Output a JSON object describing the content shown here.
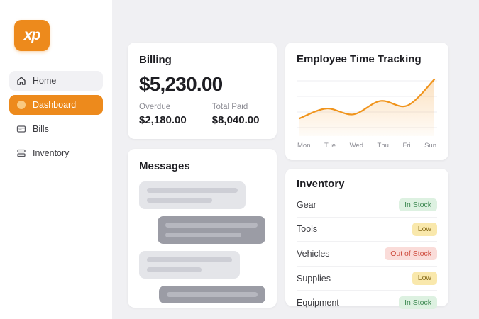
{
  "sidebar": {
    "logo_text": "xp",
    "items": [
      {
        "label": "Home",
        "icon": "home-icon",
        "state": "hovered"
      },
      {
        "label": "Dashboard",
        "icon": "dot-icon",
        "state": "active"
      },
      {
        "label": "Bills",
        "icon": "bills-icon",
        "state": "default"
      },
      {
        "label": "Inventory",
        "icon": "inventory-icon",
        "state": "default"
      }
    ]
  },
  "billing": {
    "title": "Billing",
    "total": "$5,230.00",
    "overdue_label": "Overdue",
    "overdue_value": "$2,180.00",
    "paid_label": "Total Paid",
    "paid_value": "$8,040.00"
  },
  "time_tracking": {
    "title": "Employee Time Tracking"
  },
  "chart_data": {
    "type": "line",
    "title": "Employee Time Tracking",
    "x": [
      "Mon",
      "Tue",
      "Wed",
      "Thu",
      "Fri",
      "Sun"
    ],
    "values": [
      28,
      45,
      35,
      58,
      50,
      95
    ],
    "ylim": [
      0,
      100
    ],
    "grid": true,
    "legend": false,
    "line_color": "#F0941C",
    "fill_color": "#F5A94B",
    "grid_color": "#EDEDF0"
  },
  "messages": {
    "title": "Messages",
    "bubbles": [
      {
        "align": "left",
        "tone": "light",
        "bars": 2
      },
      {
        "align": "right",
        "tone": "dark",
        "bars": 2
      },
      {
        "align": "left",
        "tone": "light",
        "bars": 2
      },
      {
        "align": "right",
        "tone": "dark",
        "bars": 1
      }
    ]
  },
  "inventory": {
    "title": "Inventory",
    "rows": [
      {
        "name": "Gear",
        "status": "In Stock",
        "status_type": "in-stock"
      },
      {
        "name": "Tools",
        "status": "Low",
        "status_type": "low"
      },
      {
        "name": "Vehicles",
        "status": "Out of Stock",
        "status_type": "out-of-stock"
      },
      {
        "name": "Supplies",
        "status": "Low",
        "status_type": "low"
      },
      {
        "name": "Equipment",
        "status": "In Stock",
        "status_type": "in-stock"
      }
    ]
  },
  "colors": {
    "accent": "#ED8A1C",
    "in_stock_bg": "#DDF1E1",
    "in_stock_text": "#3F8A53",
    "low_bg": "#F9E8AC",
    "low_text": "#8A6D1C",
    "out_of_stock_bg": "#FADCD9",
    "out_of_stock_text": "#CE4B3D"
  }
}
